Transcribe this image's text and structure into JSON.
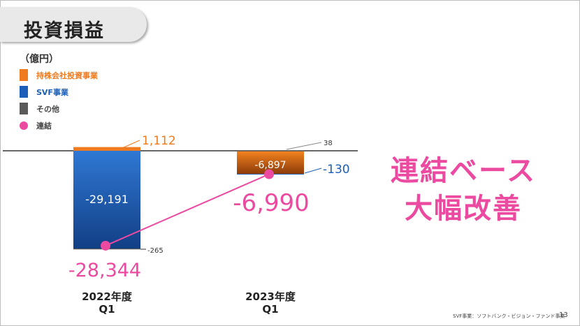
{
  "slide": {
    "title": "投資損益",
    "headline_line1": "連結ベース",
    "headline_line2": "大幅改善",
    "footnote": "SVF事業：ソフトバンク・ビジョン・ファンド事業",
    "page_number": "13"
  },
  "chart_data": {
    "type": "bar",
    "unit_label": "（億円）",
    "categories": [
      {
        "line1": "2022年度",
        "line2": "Q1"
      },
      {
        "line1": "2023年度",
        "line2": "Q1"
      }
    ],
    "series": [
      {
        "name": "持株会社投資事業",
        "color": "#f07a1e",
        "values": [
          1112,
          -6897
        ],
        "labels": [
          "1,112",
          "-6,897"
        ]
      },
      {
        "name": "SVF事業",
        "color": "#1b5fb8",
        "values": [
          -29191,
          -130
        ],
        "labels": [
          "-29,191",
          "-130"
        ]
      },
      {
        "name": "その他",
        "color": "#5a5a5a",
        "values": [
          -265,
          38
        ],
        "labels": [
          "-265",
          "38"
        ]
      }
    ],
    "total": {
      "name": "連結",
      "color": "#ec4aa0",
      "values": [
        -28344,
        -6990
      ],
      "labels": [
        "-28,344",
        "-6,990"
      ]
    }
  }
}
